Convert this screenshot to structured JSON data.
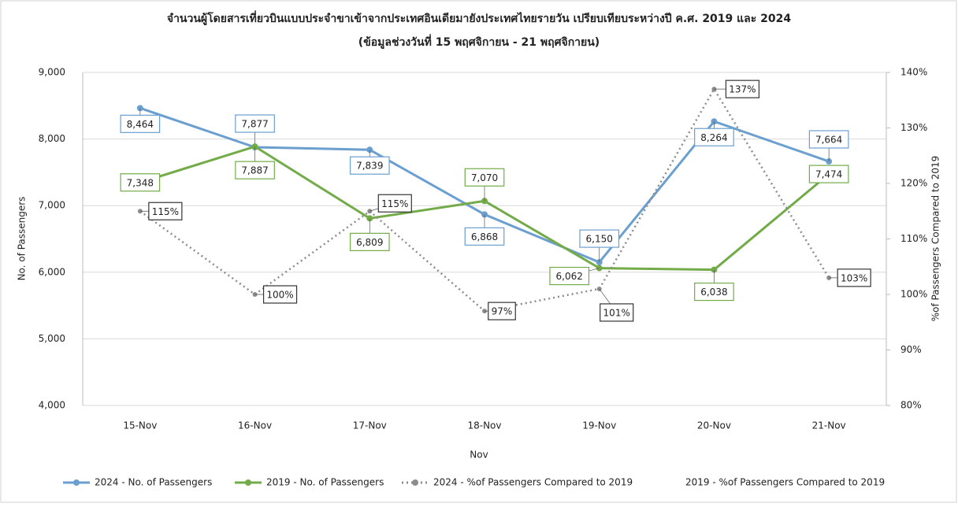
{
  "chart_data": {
    "type": "line",
    "title": "จำนวนผู้โดยสารเที่ยวบินแบบประจำขาเข้าจากประเทศอินเดียมายังประเทศไทยรายวัน เปรียบเทียบระหว่างปี ค.ศ. 2019 และ 2024",
    "subtitle": "(ข้อมูลช่วงวันที่ 15 พฤศจิกายน - 21 พฤศจิกายน)",
    "x_label": "Nov",
    "y_label": "No. of Passengers",
    "y2_label": "%of Passengers Compared to 2019",
    "categories": [
      "15-Nov",
      "16-Nov",
      "17-Nov",
      "18-Nov",
      "19-Nov",
      "20-Nov",
      "21-Nov"
    ],
    "series": [
      {
        "name": "2024 - No. of Passengers",
        "color": "#6a9fcf",
        "axis": "y",
        "values": [
          8464,
          7877,
          7839,
          6868,
          6150,
          8264,
          7664
        ],
        "value_labels": [
          "8,464",
          "7,877",
          "7,839",
          "6,868",
          "6,150",
          "8,264",
          "7,664"
        ]
      },
      {
        "name": "2019 - No. of Passengers",
        "color": "#72ab48",
        "axis": "y",
        "values": [
          7348,
          7887,
          6809,
          7070,
          6062,
          6038,
          7474
        ],
        "value_labels": [
          "7,348",
          "7,887",
          "6,809",
          "7,070",
          "6,062",
          "6,038",
          "7,474"
        ]
      },
      {
        "name": "2024 - %of Passengers Compared to 2019",
        "color": "#8c8c8c",
        "axis": "y2",
        "dashed": true,
        "values": [
          115,
          100,
          115,
          97,
          101,
          137,
          103
        ],
        "value_labels": [
          "115%",
          "100%",
          "115%",
          "97%",
          "101%",
          "137%",
          "103%"
        ]
      },
      {
        "name": "2019 - %of Passengers Compared to 2019",
        "color": "none",
        "axis": "y2",
        "values": [
          null,
          null,
          null,
          null,
          null,
          null,
          null
        ]
      }
    ],
    "ylim": [
      4000,
      9000
    ],
    "yticks": [
      {
        "value": 4000,
        "label": "4,000"
      },
      {
        "value": 5000,
        "label": "5,000"
      },
      {
        "value": 6000,
        "label": "6,000"
      },
      {
        "value": 7000,
        "label": "7,000"
      },
      {
        "value": 8000,
        "label": "8,000"
      },
      {
        "value": 9000,
        "label": "9,000"
      }
    ],
    "y2lim": [
      80,
      140
    ],
    "y2ticks": [
      {
        "value": 80,
        "label": "80%"
      },
      {
        "value": 90,
        "label": "90%"
      },
      {
        "value": 100,
        "label": "100%"
      },
      {
        "value": 110,
        "label": "110%"
      },
      {
        "value": 120,
        "label": "120%"
      },
      {
        "value": 130,
        "label": "130%"
      },
      {
        "value": 140,
        "label": "140%"
      }
    ],
    "grid": true,
    "legend": "bottom"
  }
}
